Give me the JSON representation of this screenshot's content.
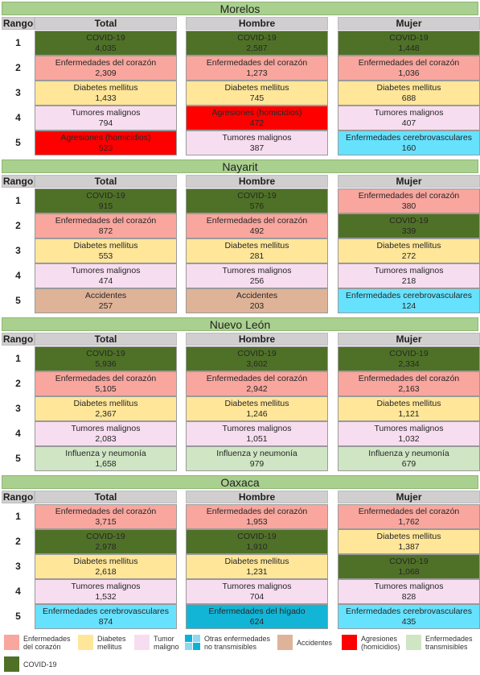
{
  "headers": {
    "rango": "Rango",
    "total": "Total",
    "hombre": "Hombre",
    "mujer": "Mujer"
  },
  "colors": {
    "Enfermedades del corazón": "#f8a69e",
    "Diabetes mellitus": "#ffe699",
    "Tumores malignos": "#f7ddf0",
    "COVID-19": "#4f7127",
    "Agresiones (homicidios)": "#ff0000",
    "Enfermedades cerebrovasculares": "#66e2ff",
    "Accidentes": "#dfb398",
    "Influenza y neumonía": "#cfe5c4",
    "Enfermedades del hígado": "#13b5d6"
  },
  "chart_data": {
    "type": "table",
    "states": [
      {
        "name": "Morelos",
        "total": [
          [
            "COVID-19",
            "4,035"
          ],
          [
            "Enfermedades del corazón",
            "2,309"
          ],
          [
            "Diabetes mellitus",
            "1,433"
          ],
          [
            "Tumores malignos",
            "794"
          ],
          [
            "Agresiones (homicidios)",
            "523"
          ]
        ],
        "hombre": [
          [
            "COVID-19",
            "2,587"
          ],
          [
            "Enfermedades del corazón",
            "1,273"
          ],
          [
            "Diabetes mellitus",
            "745"
          ],
          [
            "Agresiones (homicidios)",
            "472"
          ],
          [
            "Tumores malignos",
            "387"
          ]
        ],
        "mujer": [
          [
            "COVID-19",
            "1,448"
          ],
          [
            "Enfermedades del corazón",
            "1,036"
          ],
          [
            "Diabetes mellitus",
            "688"
          ],
          [
            "Tumores malignos",
            "407"
          ],
          [
            "Enfermedades cerebrovasculares",
            "160"
          ]
        ]
      },
      {
        "name": "Nayarit",
        "total": [
          [
            "COVID-19",
            "915"
          ],
          [
            "Enfermedades del corazón",
            "872"
          ],
          [
            "Diabetes mellitus",
            "553"
          ],
          [
            "Tumores malignos",
            "474"
          ],
          [
            "Accidentes",
            "257"
          ]
        ],
        "hombre": [
          [
            "COVID-19",
            "576"
          ],
          [
            "Enfermedades del corazón",
            "492"
          ],
          [
            "Diabetes mellitus",
            "281"
          ],
          [
            "Tumores malignos",
            "256"
          ],
          [
            "Accidentes",
            "203"
          ]
        ],
        "mujer": [
          [
            "Enfermedades del corazón",
            "380"
          ],
          [
            "COVID-19",
            "339"
          ],
          [
            "Diabetes mellitus",
            "272"
          ],
          [
            "Tumores malignos",
            "218"
          ],
          [
            "Enfermedades cerebrovasculares",
            "124"
          ]
        ]
      },
      {
        "name": "Nuevo León",
        "total": [
          [
            "COVID-19",
            "5,936"
          ],
          [
            "Enfermedades del corazón",
            "5,105"
          ],
          [
            "Diabetes mellitus",
            "2,367"
          ],
          [
            "Tumores malignos",
            "2,083"
          ],
          [
            "Influenza y neumonía",
            "1,658"
          ]
        ],
        "hombre": [
          [
            "COVID-19",
            "3,602"
          ],
          [
            "Enfermedades del corazón",
            "2,942"
          ],
          [
            "Diabetes mellitus",
            "1,246"
          ],
          [
            "Tumores malignos",
            "1,051"
          ],
          [
            "Influenza y neumonía",
            "979"
          ]
        ],
        "mujer": [
          [
            "COVID-19",
            "2,334"
          ],
          [
            "Enfermedades del corazón",
            "2,163"
          ],
          [
            "Diabetes mellitus",
            "1,121"
          ],
          [
            "Tumores malignos",
            "1,032"
          ],
          [
            "Influenza y neumonía",
            "679"
          ]
        ]
      },
      {
        "name": "Oaxaca",
        "total": [
          [
            "Enfermedades del corazón",
            "3,715"
          ],
          [
            "COVID-19",
            "2,978"
          ],
          [
            "Diabetes mellitus",
            "2,618"
          ],
          [
            "Tumores malignos",
            "1,532"
          ],
          [
            "Enfermedades cerebrovasculares",
            "874"
          ]
        ],
        "hombre": [
          [
            "Enfermedades del corazón",
            "1,953"
          ],
          [
            "COVID-19",
            "1,910"
          ],
          [
            "Diabetes mellitus",
            "1,231"
          ],
          [
            "Tumores malignos",
            "704"
          ],
          [
            "Enfermedades del hígado",
            "624"
          ]
        ],
        "mujer": [
          [
            "Enfermedades del corazón",
            "1,762"
          ],
          [
            "Diabetes mellitus",
            "1,387"
          ],
          [
            "COVID-19",
            "1,068"
          ],
          [
            "Tumores malignos",
            "828"
          ],
          [
            "Enfermedades cerebrovasculares",
            "435"
          ]
        ]
      }
    ]
  },
  "legend": [
    {
      "label": "Enfermedades del corazón",
      "lines": [
        "Enfermedades",
        "del corazón"
      ],
      "color": "#f8a69e"
    },
    {
      "label": "Diabetes mellitus",
      "lines": [
        "Diabetes",
        "mellitus"
      ],
      "color": "#ffe699"
    },
    {
      "label": "Tumor maligno",
      "lines": [
        "Tumor",
        "maligno"
      ],
      "color": "#f7ddf0"
    },
    {
      "label": "Otras enfermedades no transmisibles",
      "lines": [
        "Otras enfermedades",
        "no transmisibles"
      ],
      "color": "grid"
    },
    {
      "label": "Accidentes",
      "lines": [
        "Accidentes"
      ],
      "color": "#dfb398"
    },
    {
      "label": "Agresiones (homicidios)",
      "lines": [
        "Agresiones",
        "(homicidios)"
      ],
      "color": "#ff0000"
    },
    {
      "label": "Enfermedades transmisibles",
      "lines": [
        "Enfermedades",
        "transmisibles"
      ],
      "color": "#cfe5c4"
    },
    {
      "label": "COVID-19",
      "lines": [
        "COVID-19"
      ],
      "color": "#4f7127"
    }
  ]
}
